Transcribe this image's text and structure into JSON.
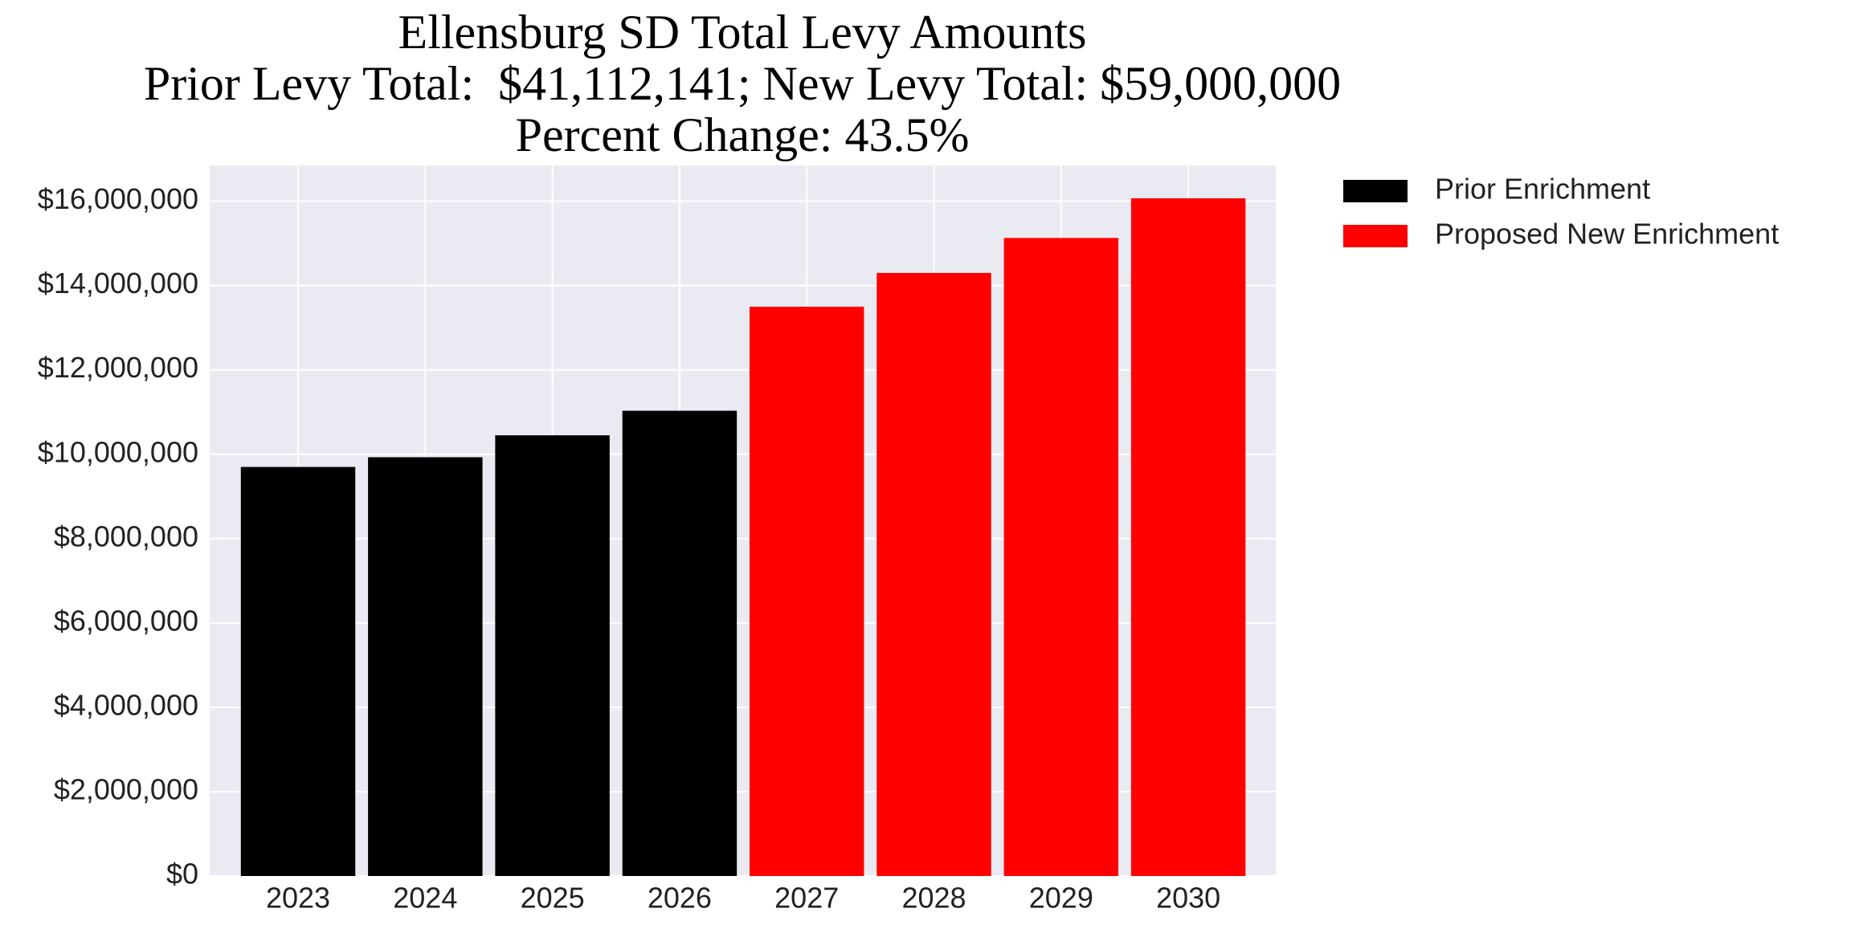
{
  "chart_data": {
    "type": "bar",
    "title": [
      "Ellensburg SD Total Levy Amounts",
      "Prior Levy Total:  $41,112,141; New Levy Total: $59,000,000",
      "Percent Change: 43.5%"
    ],
    "categories": [
      "2023",
      "2024",
      "2025",
      "2026",
      "2027",
      "2028",
      "2029",
      "2030"
    ],
    "series": [
      {
        "name": "Prior Enrichment",
        "color": "#000000",
        "values": [
          9700000,
          9930000,
          10450000,
          11032141,
          null,
          null,
          null,
          null
        ]
      },
      {
        "name": "Proposed New Enrichment",
        "color": "#ff0000",
        "values": [
          null,
          null,
          null,
          null,
          13500000,
          14300000,
          15130000,
          16070000
        ]
      }
    ],
    "ylim": [
      0,
      16850000
    ],
    "yticks": [
      {
        "value": 0,
        "label": "$0"
      },
      {
        "value": 2000000,
        "label": "$2,000,000"
      },
      {
        "value": 4000000,
        "label": "$4,000,000"
      },
      {
        "value": 6000000,
        "label": "$6,000,000"
      },
      {
        "value": 8000000,
        "label": "$8,000,000"
      },
      {
        "value": 10000000,
        "label": "$10,000,000"
      },
      {
        "value": 12000000,
        "label": "$12,000,000"
      },
      {
        "value": 14000000,
        "label": "$14,000,000"
      },
      {
        "value": 16000000,
        "label": "$16,000,000"
      }
    ],
    "grid": true,
    "legend": "outside-right"
  }
}
